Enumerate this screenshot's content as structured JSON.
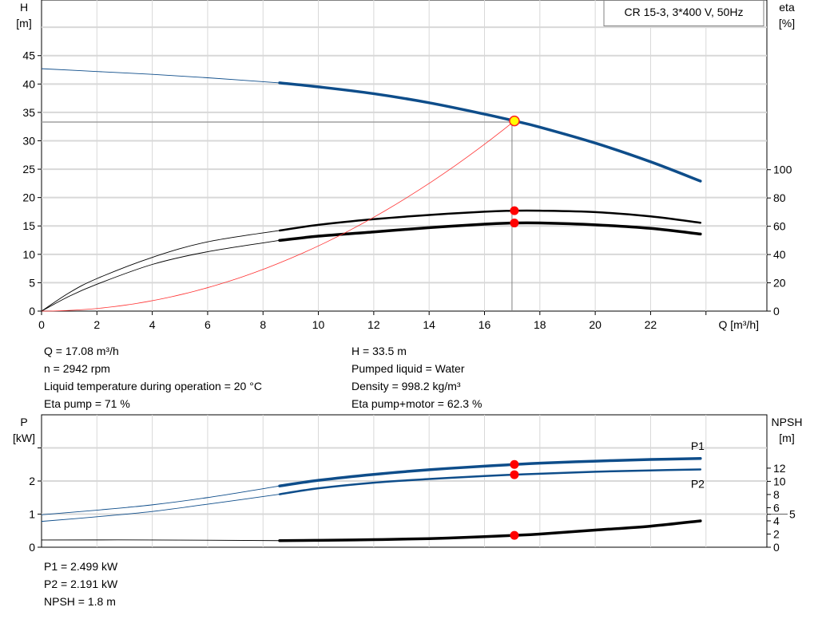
{
  "chart_data": [
    {
      "type": "line",
      "legend_box": "CR 15-3, 3*400 V, 50Hz",
      "xlabel": "Q [m³/h]",
      "ylabel_left": [
        "H",
        "[m]"
      ],
      "ylabel_right": [
        "eta",
        "[%]"
      ],
      "xlim": [
        0,
        26.2
      ],
      "ylim_left": [
        0,
        54.8
      ],
      "ylim_right": [
        0,
        220
      ],
      "x_ticks": [
        0,
        2,
        4,
        6,
        8,
        10,
        12,
        14,
        16,
        18,
        20,
        22
      ],
      "y_ticks_left": [
        0,
        5,
        10,
        15,
        20,
        25,
        30,
        35,
        40,
        45
      ],
      "y_ticks_right": [
        0,
        20,
        40,
        60,
        80,
        100
      ],
      "grid": true,
      "duty_point": {
        "Q": 17.08,
        "H": 33.5,
        "eta_pump": 71,
        "eta_total": 62.3
      },
      "series": [
        {
          "id": "H",
          "axis": "left",
          "color": "#0e4d8a",
          "thick_from": 8.6,
          "x": [
            0,
            2,
            4,
            6,
            8.6,
            10,
            12,
            14,
            16,
            17.08,
            18,
            20,
            22,
            23.8
          ],
          "y": [
            42.7,
            42.2,
            41.7,
            41.1,
            40.2,
            39.5,
            38.3,
            36.7,
            34.7,
            33.5,
            32.4,
            29.6,
            26.3,
            22.9
          ]
        },
        {
          "id": "eta_pump",
          "axis": "right",
          "color": "#000000",
          "thick_from": 8.6,
          "x": [
            0,
            1,
            2,
            4,
            6,
            8.6,
            10,
            12,
            14,
            16,
            17.08,
            18,
            20,
            22,
            23.8
          ],
          "y": [
            0,
            13,
            23,
            38,
            49,
            57,
            61,
            65,
            68,
            70.3,
            71,
            71,
            70,
            67,
            62.5
          ]
        },
        {
          "id": "eta_pump_motor",
          "axis": "right",
          "color": "#000000",
          "thick_from": 8.6,
          "x": [
            0,
            1,
            2,
            4,
            6,
            8.6,
            10,
            12,
            14,
            16,
            17.08,
            18,
            20,
            22,
            23.8
          ],
          "y": [
            0,
            10.5,
            19,
            33,
            42,
            50,
            53,
            56,
            59,
            61.5,
            62.3,
            62.3,
            61,
            58.5,
            54.5
          ]
        },
        {
          "id": "system",
          "axis": "left",
          "color": "#ff3030",
          "type": "quadratic",
          "k": 0.1148,
          "x_range": [
            0,
            17.08
          ]
        }
      ]
    },
    {
      "type": "line",
      "ylabel_left": [
        "P",
        "[kW]"
      ],
      "ylabel_right": [
        "NPSH",
        "[m]"
      ],
      "xlim": [
        0,
        26.2
      ],
      "ylim_left": [
        0,
        4
      ],
      "ylim_right": [
        0,
        20.1
      ],
      "y_ticks_left": [
        0,
        1,
        2,
        3
      ],
      "y_tick_labels_left": [
        "0",
        "1",
        "2",
        ""
      ],
      "y_ticks_right": [
        0,
        2,
        4,
        5,
        6,
        8,
        10,
        12
      ],
      "grid": true,
      "duty_point": {
        "Q": 17.08,
        "P1": 2.499,
        "P2": 2.191,
        "NPSH": 1.8
      },
      "series": [
        {
          "id": "P1",
          "name": "P1",
          "axis": "left",
          "color": "#0e4d8a",
          "thick_from": 8.6,
          "x": [
            0,
            2,
            4,
            6,
            8.6,
            10,
            12,
            14,
            16,
            17.08,
            18,
            20,
            22,
            23.8
          ],
          "y": [
            0.98,
            1.12,
            1.28,
            1.5,
            1.85,
            2.02,
            2.2,
            2.34,
            2.45,
            2.499,
            2.54,
            2.6,
            2.65,
            2.68
          ]
        },
        {
          "id": "P2",
          "name": "P2",
          "axis": "left",
          "color": "#0e4d8a",
          "thick_from": 8.6,
          "x": [
            0,
            2,
            4,
            6,
            8.6,
            10,
            12,
            14,
            16,
            17.08,
            18,
            20,
            22,
            23.8
          ],
          "y": [
            0.78,
            0.92,
            1.08,
            1.3,
            1.6,
            1.78,
            1.95,
            2.06,
            2.15,
            2.191,
            2.22,
            2.28,
            2.32,
            2.35
          ]
        },
        {
          "id": "NPSH",
          "axis": "right",
          "color": "#000000",
          "thick_from": 8.6,
          "x": [
            0,
            4,
            8.6,
            10,
            12,
            14,
            16,
            17.08,
            18,
            20,
            22,
            23.8
          ],
          "y": [
            1.1,
            1.1,
            1.0,
            1.05,
            1.15,
            1.3,
            1.6,
            1.8,
            2.0,
            2.6,
            3.2,
            4.0
          ]
        }
      ]
    }
  ],
  "info_top_left": [
    "Q = 17.08 m³/h",
    "n = 2942 rpm",
    "Liquid temperature during operation = 20 °C",
    "Eta pump = 71 %"
  ],
  "info_top_right": [
    "H = 33.5 m",
    "Pumped liquid = Water",
    "Density = 998.2 kg/m³",
    "Eta pump+motor = 62.3 %"
  ],
  "info_bottom": [
    "P1 = 2.499 kW",
    "P2 = 2.191 kW",
    "NPSH = 1.8 m"
  ]
}
